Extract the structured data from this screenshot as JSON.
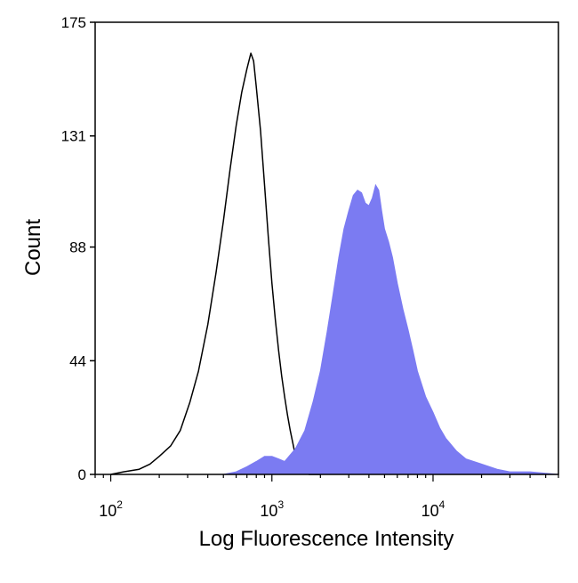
{
  "chart_data": {
    "type": "area",
    "xlabel": "Log Fluorescence Intensity",
    "ylabel": "Count",
    "xscale": "log",
    "xlim": [
      80,
      60000
    ],
    "ylim": [
      0,
      175
    ],
    "grid": false,
    "legend": "none",
    "x_ticks": [
      {
        "value": 100,
        "base": "10",
        "exp": "2"
      },
      {
        "value": 1000,
        "base": "10",
        "exp": "3"
      },
      {
        "value": 10000,
        "base": "10",
        "exp": "4"
      }
    ],
    "y_ticks": [
      {
        "value": 0,
        "label": "0"
      },
      {
        "value": 44,
        "label": "44"
      },
      {
        "value": 88,
        "label": "88"
      },
      {
        "value": 131,
        "label": "131"
      },
      {
        "value": 175,
        "label": "175"
      }
    ],
    "series": [
      {
        "style": "outline",
        "color": "#000000",
        "points": [
          [
            100,
            0
          ],
          [
            120,
            1
          ],
          [
            150,
            2
          ],
          [
            175,
            4
          ],
          [
            200,
            7
          ],
          [
            235,
            11
          ],
          [
            270,
            17
          ],
          [
            310,
            28
          ],
          [
            350,
            40
          ],
          [
            400,
            58
          ],
          [
            450,
            78
          ],
          [
            500,
            98
          ],
          [
            550,
            118
          ],
          [
            600,
            135
          ],
          [
            650,
            148
          ],
          [
            700,
            157
          ],
          [
            740,
            163
          ],
          [
            770,
            160
          ],
          [
            800,
            150
          ],
          [
            850,
            133
          ],
          [
            900,
            112
          ],
          [
            950,
            92
          ],
          [
            1000,
            74
          ],
          [
            1050,
            60
          ],
          [
            1100,
            48
          ],
          [
            1150,
            38
          ],
          [
            1200,
            30
          ],
          [
            1250,
            23
          ],
          [
            1300,
            17
          ],
          [
            1350,
            12
          ],
          [
            1400,
            7
          ],
          [
            1450,
            4
          ],
          [
            1500,
            2
          ],
          [
            1600,
            1
          ],
          [
            1700,
            0
          ],
          [
            2000,
            0
          ]
        ]
      },
      {
        "style": "filled",
        "color": "#7B7BF2",
        "points": [
          [
            500,
            0
          ],
          [
            600,
            1
          ],
          [
            700,
            3
          ],
          [
            800,
            5
          ],
          [
            900,
            7
          ],
          [
            1000,
            7
          ],
          [
            1100,
            6
          ],
          [
            1200,
            5
          ],
          [
            1400,
            10
          ],
          [
            1600,
            17
          ],
          [
            1800,
            28
          ],
          [
            2000,
            40
          ],
          [
            2200,
            55
          ],
          [
            2400,
            70
          ],
          [
            2600,
            84
          ],
          [
            2800,
            95
          ],
          [
            3000,
            102
          ],
          [
            3200,
            108
          ],
          [
            3400,
            110
          ],
          [
            3600,
            109
          ],
          [
            3800,
            105
          ],
          [
            4000,
            104
          ],
          [
            4200,
            107
          ],
          [
            4400,
            112
          ],
          [
            4600,
            110
          ],
          [
            4800,
            102
          ],
          [
            5000,
            95
          ],
          [
            5300,
            90
          ],
          [
            5600,
            84
          ],
          [
            6000,
            74
          ],
          [
            6500,
            64
          ],
          [
            7000,
            56
          ],
          [
            7500,
            48
          ],
          [
            8000,
            40
          ],
          [
            9000,
            30
          ],
          [
            10000,
            24
          ],
          [
            11000,
            18
          ],
          [
            12000,
            14
          ],
          [
            14000,
            9
          ],
          [
            16000,
            6
          ],
          [
            20000,
            4
          ],
          [
            25000,
            2
          ],
          [
            30000,
            1
          ],
          [
            40000,
            1
          ],
          [
            60000,
            0
          ]
        ]
      }
    ]
  }
}
